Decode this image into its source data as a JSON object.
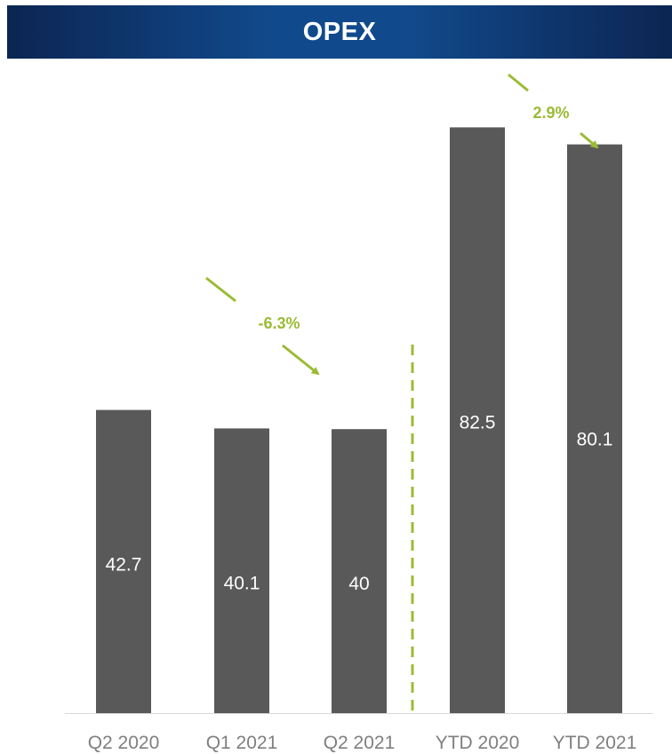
{
  "header": {
    "title": "OPEX"
  },
  "chart_data": {
    "type": "bar",
    "title": "OPEX",
    "categories": [
      "Q2 2020",
      "Q1 2021",
      "Q2 2021",
      "YTD 2020",
      "YTD 2021"
    ],
    "values": [
      42.7,
      40.1,
      40,
      82.5,
      80.1
    ],
    "data_labels": [
      "42.7",
      "40.1",
      "40",
      "82.5",
      "80.1"
    ],
    "annotations": [
      {
        "text": "-6.3%",
        "from_category": "Q1 2021",
        "to_category": "Q2 2021"
      },
      {
        "text": "2.9%",
        "from_category": "YTD 2020",
        "to_category": "YTD 2021"
      }
    ],
    "separator": "dashed line between Q2 2021 and YTD 2020",
    "grid": false,
    "legend": "none",
    "colors": {
      "bar": "#595959",
      "accent": "#9bbb35",
      "label": "#ffffff",
      "axis_text": "#7f7f7f"
    }
  }
}
